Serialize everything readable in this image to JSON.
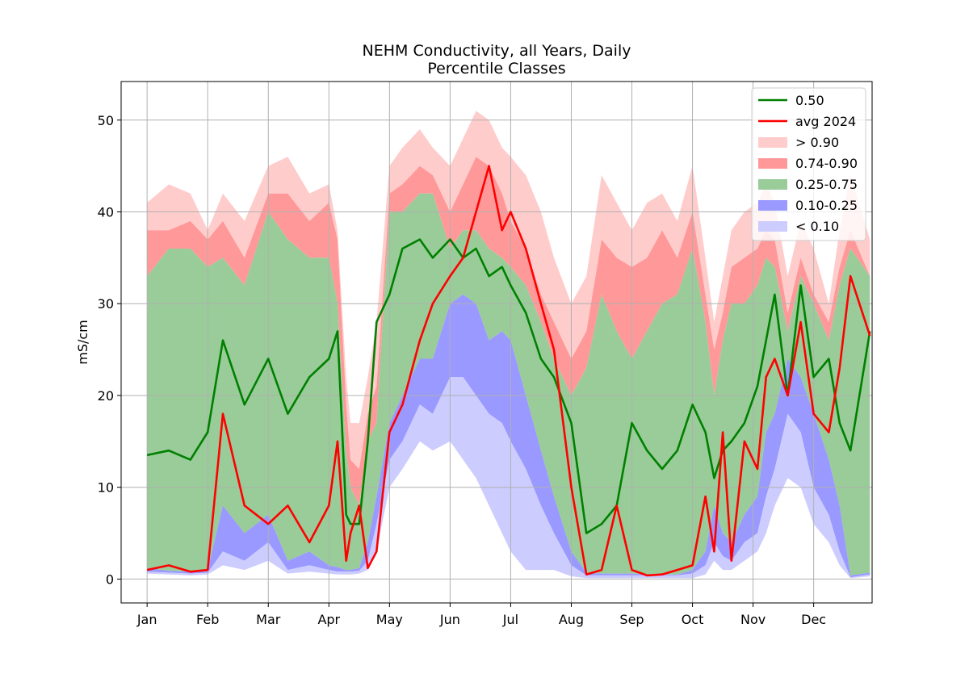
{
  "chart_data": {
    "type": "area",
    "title_line1": "NEHM Conductivity, all Years, Daily",
    "title_line2": "Percentile Classes",
    "xlabel": "",
    "ylabel": "mS/cm",
    "xlim": [
      -12,
      335
    ],
    "ylim": [
      -2.6,
      54.2
    ],
    "x_ticks": [
      {
        "day": 0,
        "label": "Jan"
      },
      {
        "day": 28,
        "label": "Feb"
      },
      {
        "day": 56,
        "label": "Mar"
      },
      {
        "day": 84,
        "label": "Apr"
      },
      {
        "day": 112,
        "label": "May"
      },
      {
        "day": 140,
        "label": "Jun"
      },
      {
        "day": 168,
        "label": "Jul"
      },
      {
        "day": 196,
        "label": "Aug"
      },
      {
        "day": 224,
        "label": "Sep"
      },
      {
        "day": 252,
        "label": "Oct"
      },
      {
        "day": 280,
        "label": "Nov"
      },
      {
        "day": 308,
        "label": "Dec"
      }
    ],
    "y_ticks": [
      0,
      10,
      20,
      30,
      40,
      50
    ],
    "grid": true,
    "legend_position": "top-right",
    "legend": [
      {
        "label": "0.50",
        "kind": "line",
        "color": "#008000"
      },
      {
        "label": "avg 2024",
        "kind": "line",
        "color": "#ff0000"
      },
      {
        "label": "> 0.90",
        "kind": "band",
        "color": "#ffcccc"
      },
      {
        "label": "0.74-0.90",
        "kind": "band",
        "color": "#ff9999"
      },
      {
        "label": "0.25-0.75",
        "kind": "band",
        "color": "#99cc99"
      },
      {
        "label": "0.10-0.25",
        "kind": "band",
        "color": "#9999ff"
      },
      {
        "label": "< 0.10",
        "kind": "band",
        "color": "#ccccff"
      }
    ],
    "x": [
      0,
      10,
      20,
      28,
      35,
      45,
      56,
      65,
      75,
      84,
      88,
      92,
      94,
      98,
      102,
      106,
      112,
      118,
      126,
      132,
      140,
      146,
      152,
      158,
      164,
      168,
      175,
      182,
      188,
      196,
      203,
      210,
      217,
      224,
      231,
      238,
      245,
      252,
      258,
      262,
      266,
      270,
      276,
      282,
      286,
      290,
      296,
      302,
      308,
      315,
      320,
      325,
      334
    ],
    "series": [
      {
        "name": "> 0.90",
        "role": "p100",
        "values": [
          41,
          43,
          42,
          38,
          42,
          39,
          45,
          46,
          42,
          43,
          38,
          22,
          17,
          17,
          22,
          28,
          45,
          47,
          49,
          47,
          45,
          48,
          51,
          50,
          47,
          46,
          44,
          40,
          35,
          30,
          33,
          44,
          41,
          38,
          41,
          42,
          39,
          45,
          35,
          28,
          33,
          38,
          40,
          41,
          43,
          41,
          33,
          39,
          36,
          30,
          38,
          44,
          37
        ]
      },
      {
        "name": "0.74-0.90",
        "role": "p90",
        "values": [
          38,
          38,
          39,
          37,
          39,
          35,
          42,
          42,
          39,
          41,
          37,
          19,
          13,
          12,
          18,
          21,
          42,
          43,
          45,
          44,
          40,
          43,
          46,
          45,
          42,
          39,
          36,
          31,
          28,
          24,
          27,
          37,
          35,
          34,
          35,
          38,
          35,
          40,
          31,
          25,
          29,
          34,
          35,
          36,
          38,
          37,
          29,
          35,
          31,
          28,
          34,
          38,
          33
        ]
      },
      {
        "name": "0.25-0.75",
        "role": "p75",
        "values": [
          33,
          36,
          36,
          34,
          35,
          32,
          40,
          37,
          35,
          35,
          30,
          14,
          10,
          8,
          15,
          17,
          40,
          40,
          42,
          42,
          36,
          38,
          38,
          36,
          35,
          34,
          32,
          28,
          24,
          20,
          23,
          31,
          27,
          24,
          27,
          30,
          31,
          36,
          28,
          20,
          26,
          30,
          30,
          32,
          35,
          34,
          27,
          33,
          30,
          26,
          32,
          36,
          33
        ]
      },
      {
        "name": "0.10-0.25",
        "role": "p25",
        "values": [
          1.2,
          0.9,
          0.8,
          1,
          8,
          5,
          7,
          2,
          3,
          1.5,
          1.3,
          1,
          1,
          1.2,
          4,
          9,
          17,
          20,
          24,
          24,
          30,
          31,
          30,
          26,
          27,
          26,
          20,
          14,
          9,
          3,
          0.7,
          0.6,
          0.6,
          0.6,
          0.5,
          0.5,
          0.5,
          1,
          3,
          8,
          5,
          4,
          7,
          9,
          16,
          18,
          24,
          22,
          18,
          13,
          8,
          0.4,
          0.7
        ]
      },
      {
        "name": "< 0.10",
        "role": "p10",
        "values": [
          0.8,
          0.7,
          0.6,
          0.7,
          3,
          2,
          4,
          1,
          1.5,
          1,
          0.8,
          0.8,
          0.8,
          0.9,
          2,
          6,
          13,
          15,
          19,
          18,
          22,
          22,
          20,
          18,
          17,
          15,
          12,
          8,
          5,
          1.5,
          0.4,
          0.4,
          0.4,
          0.4,
          0.4,
          0.4,
          0.4,
          0.6,
          1.5,
          4,
          2.5,
          2,
          4,
          5,
          9,
          12,
          18,
          16,
          10,
          7,
          3,
          0.2,
          0.5
        ]
      },
      {
        "name": "",
        "role": "p0",
        "values": [
          0.6,
          0.5,
          0.4,
          0.5,
          1.5,
          1,
          2,
          0.6,
          0.8,
          0.6,
          0.5,
          0.5,
          0.5,
          0.6,
          1,
          3,
          10,
          12,
          15,
          14,
          15,
          13,
          11,
          8,
          5,
          3,
          1,
          1,
          1,
          0.3,
          0.1,
          0.1,
          0.1,
          0.1,
          0.1,
          0.1,
          0.1,
          0.1,
          0.5,
          2,
          1,
          1,
          2,
          3,
          5,
          8,
          11,
          10,
          6,
          4,
          1.5,
          0.1,
          0.3
        ]
      },
      {
        "name": "0.50",
        "role": "median",
        "values": [
          13.5,
          14,
          13,
          16,
          26,
          19,
          24,
          18,
          22,
          24,
          27,
          7,
          6,
          6,
          15,
          28,
          31,
          36,
          37,
          35,
          37,
          35,
          36,
          33,
          34,
          32,
          29,
          24,
          22,
          17,
          5,
          6,
          8,
          17,
          14,
          12,
          14,
          19,
          16,
          11,
          14,
          15,
          17,
          21,
          26,
          31,
          20,
          32,
          22,
          24,
          17,
          14,
          27
        ]
      },
      {
        "name": "avg 2024",
        "role": "avg",
        "values": [
          1,
          1.5,
          0.8,
          1,
          18,
          8,
          6,
          8,
          4,
          8,
          15,
          2,
          5,
          8,
          1.2,
          3,
          16,
          19,
          26,
          30,
          33,
          35,
          40,
          45,
          38,
          40,
          36,
          30,
          25,
          10,
          0.5,
          1,
          8,
          1,
          0.4,
          0.5,
          1,
          1.5,
          9,
          3,
          16,
          2,
          15,
          12,
          22,
          24,
          20,
          28,
          18,
          16,
          23,
          33,
          26.5
        ]
      }
    ]
  }
}
